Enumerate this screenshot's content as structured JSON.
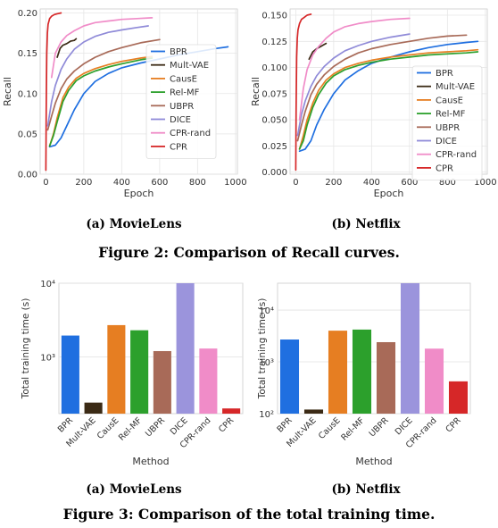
{
  "figure2": {
    "caption": "Figure 2: Comparison of Recall curves.",
    "subcaptions": [
      "(a) MovieLens",
      "(b) Netflix"
    ]
  },
  "figure3": {
    "caption": "Figure 3: Comparison of the total training time.",
    "subcaptions": [
      "(a) MovieLens",
      "(b) Netflix"
    ]
  },
  "chart_data": [
    {
      "type": "line",
      "dataset": "(a) MovieLens",
      "xlabel": "Epoch",
      "ylabel": "Recall",
      "xlim": [
        -30,
        1010
      ],
      "ylim": [
        0,
        0.205
      ],
      "xticks": [
        0,
        200,
        400,
        600,
        800,
        1000
      ],
      "yticks": [
        0.0,
        0.05,
        0.1,
        0.15,
        0.2
      ],
      "ytick_labels": [
        "0.00",
        "0.05",
        "0.10",
        "0.15",
        "0.20"
      ],
      "grid": true,
      "legend_position": "right",
      "series": [
        {
          "name": "BPR",
          "color": "#1f6fe0",
          "x": [
            20,
            50,
            80,
            110,
            150,
            200,
            260,
            330,
            400,
            500,
            600,
            700,
            800,
            900,
            960
          ],
          "y": [
            0.034,
            0.036,
            0.045,
            0.06,
            0.08,
            0.1,
            0.115,
            0.125,
            0.132,
            0.138,
            0.143,
            0.148,
            0.152,
            0.156,
            0.158
          ]
        },
        {
          "name": "Mult-VAE",
          "color": "#3b2a15",
          "x": [
            60,
            75,
            90,
            110,
            130,
            150,
            160
          ],
          "y": [
            0.145,
            0.156,
            0.16,
            0.162,
            0.165,
            0.166,
            0.168
          ]
        },
        {
          "name": "CausE",
          "color": "#e67e22",
          "x": [
            20,
            40,
            60,
            90,
            120,
            160,
            200,
            260,
            330,
            400,
            500,
            560
          ],
          "y": [
            0.035,
            0.05,
            0.07,
            0.095,
            0.108,
            0.119,
            0.125,
            0.131,
            0.136,
            0.14,
            0.144,
            0.146
          ]
        },
        {
          "name": "Rel-MF",
          "color": "#2ca02c",
          "x": [
            20,
            40,
            60,
            90,
            120,
            160,
            200,
            260,
            330,
            400,
            500,
            560
          ],
          "y": [
            0.035,
            0.048,
            0.065,
            0.09,
            0.104,
            0.116,
            0.122,
            0.128,
            0.133,
            0.137,
            0.142,
            0.144
          ]
        },
        {
          "name": "UBPR",
          "color": "#a86a58",
          "x": [
            10,
            30,
            50,
            80,
            110,
            150,
            200,
            260,
            330,
            400,
            500,
            600
          ],
          "y": [
            0.055,
            0.072,
            0.088,
            0.106,
            0.118,
            0.128,
            0.137,
            0.145,
            0.152,
            0.157,
            0.163,
            0.167
          ]
        },
        {
          "name": "DICE",
          "color": "#8f8ad8",
          "x": [
            10,
            30,
            50,
            80,
            110,
            150,
            200,
            260,
            330,
            400,
            480,
            540
          ],
          "y": [
            0.06,
            0.09,
            0.11,
            0.13,
            0.143,
            0.155,
            0.164,
            0.171,
            0.176,
            0.179,
            0.182,
            0.184
          ]
        },
        {
          "name": "CPR-rand",
          "color": "#f08cc8",
          "x": [
            30,
            50,
            80,
            110,
            150,
            200,
            260,
            330,
            400,
            480,
            560
          ],
          "y": [
            0.12,
            0.15,
            0.164,
            0.172,
            0.178,
            0.184,
            0.188,
            0.19,
            0.192,
            0.193,
            0.194
          ]
        },
        {
          "name": "CPR",
          "color": "#d62728",
          "x": [
            0,
            2,
            5,
            8,
            12,
            20,
            30,
            45,
            60,
            80
          ],
          "y": [
            0.005,
            0.08,
            0.15,
            0.175,
            0.186,
            0.193,
            0.196,
            0.198,
            0.199,
            0.2
          ]
        }
      ]
    },
    {
      "type": "line",
      "dataset": "(b) Netflix",
      "xlabel": "Epoch",
      "ylabel": "Recall",
      "xlim": [
        -30,
        1010
      ],
      "ylim": [
        -0.002,
        0.156
      ],
      "xticks": [
        0,
        200,
        400,
        600,
        800,
        1000
      ],
      "yticks": [
        0.0,
        0.025,
        0.05,
        0.075,
        0.1,
        0.125,
        0.15
      ],
      "ytick_labels": [
        "0.000",
        "0.025",
        "0.050",
        "0.075",
        "0.100",
        "0.125",
        "0.150"
      ],
      "grid": true,
      "legend_position": "right",
      "series": [
        {
          "name": "BPR",
          "color": "#1f6fe0",
          "x": [
            20,
            50,
            80,
            110,
            150,
            200,
            260,
            330,
            400,
            500,
            600,
            700,
            800,
            900,
            960
          ],
          "y": [
            0.02,
            0.022,
            0.03,
            0.045,
            0.06,
            0.075,
            0.088,
            0.097,
            0.104,
            0.11,
            0.115,
            0.119,
            0.122,
            0.124,
            0.125
          ]
        },
        {
          "name": "Mult-VAE",
          "color": "#3b2a15",
          "x": [
            70,
            90,
            110,
            130,
            150,
            160
          ],
          "y": [
            0.108,
            0.115,
            0.118,
            0.12,
            0.122,
            0.123
          ]
        },
        {
          "name": "CausE",
          "color": "#e67e22",
          "x": [
            20,
            40,
            60,
            90,
            120,
            160,
            200,
            260,
            330,
            400,
            500,
            600,
            700,
            800,
            900,
            960
          ],
          "y": [
            0.022,
            0.035,
            0.05,
            0.066,
            0.078,
            0.088,
            0.094,
            0.1,
            0.104,
            0.107,
            0.11,
            0.112,
            0.114,
            0.115,
            0.116,
            0.117
          ]
        },
        {
          "name": "Rel-MF",
          "color": "#2ca02c",
          "x": [
            20,
            40,
            60,
            90,
            120,
            160,
            200,
            260,
            330,
            400,
            500,
            600,
            700,
            800,
            900,
            960
          ],
          "y": [
            0.022,
            0.03,
            0.045,
            0.062,
            0.074,
            0.085,
            0.092,
            0.098,
            0.102,
            0.105,
            0.108,
            0.11,
            0.112,
            0.113,
            0.114,
            0.115
          ]
        },
        {
          "name": "UBPR",
          "color": "#a86a58",
          "x": [
            10,
            30,
            50,
            80,
            110,
            150,
            200,
            260,
            330,
            400,
            500,
            600,
            700,
            800,
            900
          ],
          "y": [
            0.03,
            0.045,
            0.058,
            0.074,
            0.084,
            0.093,
            0.101,
            0.108,
            0.114,
            0.118,
            0.122,
            0.125,
            0.128,
            0.13,
            0.131
          ]
        },
        {
          "name": "DICE",
          "color": "#8f8ad8",
          "x": [
            10,
            30,
            50,
            80,
            110,
            150,
            200,
            260,
            330,
            400,
            500,
            600
          ],
          "y": [
            0.035,
            0.055,
            0.068,
            0.082,
            0.092,
            0.101,
            0.109,
            0.116,
            0.121,
            0.125,
            0.129,
            0.132
          ]
        },
        {
          "name": "CPR-rand",
          "color": "#f08cc8",
          "x": [
            20,
            40,
            60,
            90,
            120,
            160,
            200,
            260,
            330,
            400,
            500,
            600
          ],
          "y": [
            0.05,
            0.08,
            0.098,
            0.112,
            0.12,
            0.128,
            0.134,
            0.139,
            0.142,
            0.144,
            0.146,
            0.147
          ]
        },
        {
          "name": "CPR",
          "color": "#d62728",
          "x": [
            0,
            2,
            5,
            8,
            12,
            20,
            30,
            45,
            60,
            80
          ],
          "y": [
            0.002,
            0.06,
            0.11,
            0.128,
            0.136,
            0.142,
            0.146,
            0.148,
            0.15,
            0.151
          ]
        }
      ]
    },
    {
      "type": "bar",
      "dataset": "(a) MovieLens",
      "xlabel": "Method",
      "ylabel": "Total training time (s)",
      "yscale": "log",
      "ylim": [
        170,
        10000
      ],
      "yticks": [
        1000,
        10000
      ],
      "ytick_labels": [
        "10³",
        "10⁴"
      ],
      "grid": true,
      "categories": [
        "BPR",
        "Mult-VAE",
        "CausE",
        "Rel-MF",
        "UBPR",
        "DICE",
        "CPR-rand",
        "CPR"
      ],
      "values": [
        1950,
        240,
        2700,
        2300,
        1200,
        10000,
        1300,
        200
      ],
      "colors": [
        "#1f6fe0",
        "#3b2a15",
        "#e67e22",
        "#2ca02c",
        "#a86a58",
        "#9b94dc",
        "#f08cc8",
        "#d62728"
      ]
    },
    {
      "type": "bar",
      "dataset": "(b) Netflix",
      "xlabel": "Method",
      "ylabel": "Total training time (s)",
      "yscale": "log",
      "ylim": [
        100,
        33000
      ],
      "yticks": [
        100,
        1000,
        10000
      ],
      "ytick_labels": [
        "10²",
        "10³",
        "10⁴"
      ],
      "grid": true,
      "categories": [
        "BPR",
        "Mult-VAE",
        "CausE",
        "Rel-MF",
        "UBPR",
        "DICE",
        "CPR-rand",
        "CPR"
      ],
      "values": [
        2700,
        120,
        4000,
        4200,
        2400,
        33000,
        1800,
        420
      ],
      "colors": [
        "#1f6fe0",
        "#3b2a15",
        "#e67e22",
        "#2ca02c",
        "#a86a58",
        "#9b94dc",
        "#f08cc8",
        "#d62728"
      ]
    }
  ]
}
